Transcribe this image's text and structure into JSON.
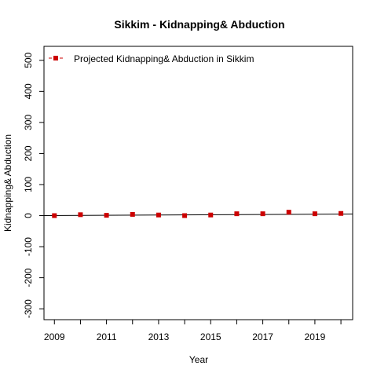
{
  "chart_data": {
    "type": "line",
    "title": "Sikkim  -  Kidnapping& Abduction",
    "xlabel": "Year",
    "ylabel": "Kidnapping& Abduction",
    "x": [
      2009,
      2010,
      2011,
      2012,
      2013,
      2014,
      2015,
      2016,
      2017,
      2018,
      2019,
      2020
    ],
    "x_tick_values": [
      2009,
      2010,
      2011,
      2012,
      2013,
      2014,
      2015,
      2016,
      2017,
      2018,
      2019,
      2020
    ],
    "x_tick_labels": [
      "2009",
      "2011",
      "2013",
      "2015",
      "2017",
      "2019"
    ],
    "x_tick_label_values": [
      2009,
      2011,
      2013,
      2015,
      2017,
      2019
    ],
    "y_ticks": [
      -300,
      -200,
      -100,
      0,
      100,
      200,
      300,
      400,
      500
    ],
    "y_tick_labels": [
      "-300",
      "-200",
      "-100",
      "0",
      "100",
      "200",
      "300",
      "400",
      "500"
    ],
    "xlim": [
      2008.6,
      2020.45
    ],
    "ylim": [
      -335,
      545
    ],
    "series": [
      {
        "name": "Projected  Kidnapping& Abduction  in  Sikkim",
        "color": "#cc0000",
        "marker": "square",
        "line": "dashed",
        "values": [
          0,
          3,
          1,
          4,
          2,
          0,
          2,
          6,
          6,
          11,
          6,
          7
        ]
      }
    ],
    "trend_line": {
      "color": "#000000",
      "start": [
        2008.6,
        0
      ],
      "end": [
        2020.45,
        5
      ]
    },
    "legend_position": "top-left",
    "grid": false
  }
}
